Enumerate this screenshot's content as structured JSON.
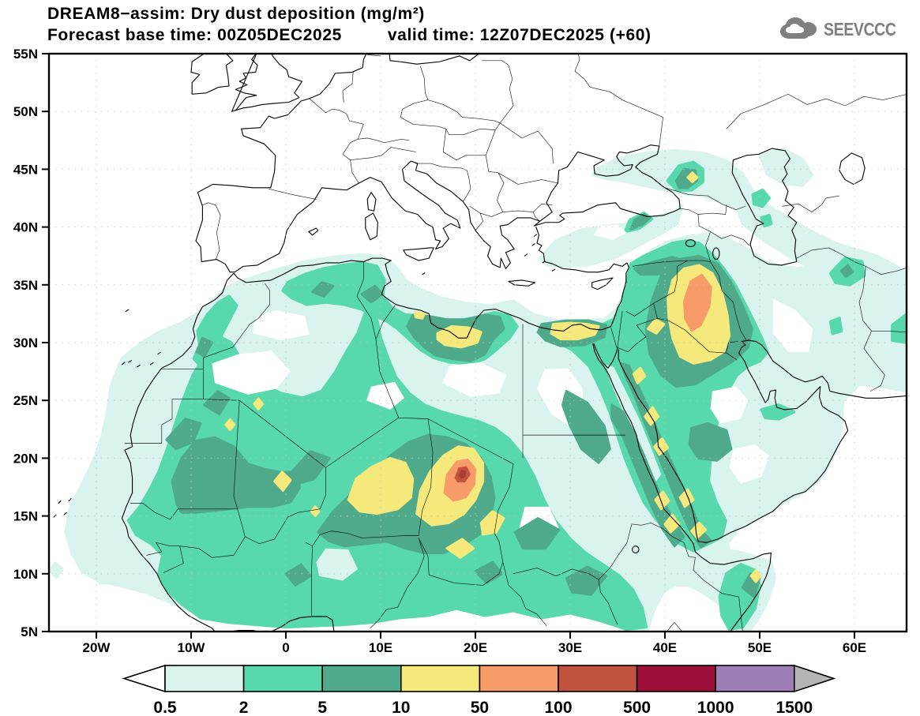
{
  "header": {
    "title_line1": "DREAM8−assim: Dry dust deposition (mg/m²)",
    "title_line2_left": "Forecast base time: 00Z05DEC2025",
    "title_line2_right": "valid time: 12Z07DEC2025 (+60)",
    "logo_text": "SEEVCCC"
  },
  "map_axes": {
    "y_ticks": [
      "55N",
      "50N",
      "45N",
      "40N",
      "35N",
      "30N",
      "25N",
      "20N",
      "15N",
      "10N",
      "5N"
    ],
    "x_ticks": [
      "20W",
      "10W",
      "0",
      "10E",
      "20E",
      "30E",
      "40E",
      "50E",
      "60E"
    ]
  },
  "colorbar": {
    "labels": [
      "0.5",
      "2",
      "5",
      "10",
      "50",
      "100",
      "500",
      "1000",
      "1500"
    ],
    "colors": [
      "#ffffff",
      "#d9f3ee",
      "#57d8ad",
      "#4faa8c",
      "#f6e97b",
      "#f79b69",
      "#c2543f",
      "#9d1039",
      "#9e7db6",
      "#b5b5b5"
    ]
  },
  "chart_data": {
    "type": "filled_contour_map",
    "title": "DREAM8−assim: Dry dust deposition (mg/m²)",
    "forecast_base_time": "00Z05DEC2025",
    "valid_time": "12Z07DEC2025 (+60)",
    "units": "mg/m²",
    "projection": "lat-lon",
    "lon_range": [
      -25,
      65.5
    ],
    "lat_range": [
      5,
      55
    ],
    "x_tick_lons": [
      -20,
      -10,
      0,
      10,
      20,
      30,
      40,
      50,
      60
    ],
    "y_tick_lats": [
      55,
      50,
      45,
      40,
      35,
      30,
      25,
      20,
      15,
      10,
      5
    ],
    "contour_levels": [
      0.5,
      2,
      5,
      10,
      50,
      100,
      500,
      1000,
      1500
    ],
    "level_colors": {
      "0.5-2": "#d9f3ee",
      "2-5": "#57d8ad",
      "5-10": "#4faa8c",
      "10-50": "#f6e97b",
      "50-100": "#f79b69",
      "100-500": "#c2543f",
      "500-1000": "#9d1039",
      "1000-1500": "#9e7db6",
      ">1500": "#b5b5b5"
    },
    "features": [
      {
        "name": "Sahel/Sahara broad deposition field",
        "lon": 0,
        "lat": 17,
        "band": "2-10"
      },
      {
        "name": "Chad (Bodélé) maximum",
        "lon": 18.5,
        "lat": 18.5,
        "band": "100-500"
      },
      {
        "name": "Niger yellow area",
        "lon": 10,
        "lat": 17.5,
        "band": "10-50"
      },
      {
        "name": "North Mali spot",
        "lon": -0.4,
        "lat": 18,
        "band": "10-50"
      },
      {
        "name": "Sirte/Libya coastal band",
        "lon": 18,
        "lat": 30.5,
        "band": "10-50"
      },
      {
        "name": "NW Egypt coast",
        "lon": 30,
        "lat": 31,
        "band": "10-50"
      },
      {
        "name": "Mesopotamia/Iraq maximum",
        "lon": 43.5,
        "lat": 33.5,
        "band": "50-100"
      },
      {
        "name": "Red Sea coastal strips",
        "lon": 39,
        "lat": 19,
        "band": "10-50"
      },
      {
        "name": "North Caucasus patch",
        "lon": 42.5,
        "lat": 44.5,
        "band": "10-50"
      },
      {
        "name": "NE Somalia patch",
        "lon": 49.5,
        "lat": 9.8,
        "band": "10-50"
      },
      {
        "name": "NE Iran (Mashhad) patch",
        "lon": 59,
        "lat": 36,
        "band": "2-10"
      }
    ]
  }
}
